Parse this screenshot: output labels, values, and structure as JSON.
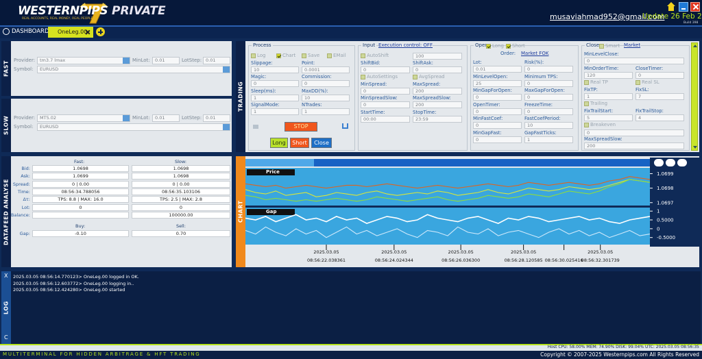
{
  "header": {
    "brand": "WESTERNPIPS",
    "edition": "PRIVATE",
    "tagline": "REAL ACCOUNTS, REAL MONEY, REAL PEOPLE",
    "email": "musaviahmad952@gmail.com",
    "update": "Update 26 Feb 2025",
    "build": "Build 398"
  },
  "tabs": {
    "dashboard": "DASHBOARD",
    "active": "OneLeg.00"
  },
  "fast": {
    "title": "FAST",
    "provider_label": "Provider:",
    "provider": "tm3.7 lmax",
    "minlot_label": "MinLot:",
    "minlot": "0.01",
    "lotstep_label": "LotStep:",
    "lotstep": "0.01",
    "symbol_label": "Symbol:",
    "symbol": "EURUSD"
  },
  "slow": {
    "title": "SLOW",
    "provider_label": "Provider:",
    "provider": "MT5.02",
    "minlot_label": "MinLot:",
    "minlot": "0.01",
    "lotstep_label": "LotStep:",
    "lotstep": "0.01",
    "symbol_label": "Symbol:",
    "symbol": "EURUSD"
  },
  "datafeed": {
    "title": "DATAFEED ANALYSE",
    "col_fast": "Fast:",
    "col_slow": "Slow:",
    "rows": [
      {
        "label": "Bid:",
        "fast": "1.0698",
        "slow": "1.0698"
      },
      {
        "label": "Ask:",
        "fast": "1.0699",
        "slow": "1.0698"
      },
      {
        "label": "Spread:",
        "fast": "0 | 0.00",
        "slow": "0 | 0.00"
      },
      {
        "label": "Time:",
        "fast": "08:56:34.788056",
        "slow": "08:56:35.103106"
      },
      {
        "label": "Δτ:",
        "fast": "TPS: 8.8 | MAX: 16.0",
        "slow": "TPS: 2.5 | MAX: 2.8"
      },
      {
        "label": "Lot:",
        "fast": "0",
        "slow": "0"
      },
      {
        "label": "Balance:",
        "slow": "100000.00"
      }
    ],
    "buy_label": "Buy:",
    "sell_label": "Sell:",
    "gap_label": "Gap:",
    "buy": "-0.10",
    "sell": "0.70"
  },
  "trading": {
    "title": "TRADING",
    "process": {
      "title": "Process",
      "rows": [
        [
          {
            "check": "Log",
            "on": false
          },
          {
            "check": "Chart",
            "on": true
          },
          {
            "check": "Save",
            "on": false
          },
          {
            "check": "EMail",
            "on": false
          }
        ],
        [
          {
            "label": "Slippage:",
            "value": "10"
          },
          {
            "label": "Point:",
            "value": "0.0001"
          }
        ],
        [
          {
            "label": "Magic:",
            "value": "0"
          },
          {
            "label": "Commission:",
            "value": "0"
          }
        ],
        [
          {
            "label": "Sleep(ms):",
            "value": "1"
          },
          {
            "label": "MaxDD(%):",
            "value": "10"
          }
        ],
        [
          {
            "label": "SignalMode:",
            "value": "1"
          },
          {
            "label": "NTrades:",
            "value": "1"
          }
        ]
      ],
      "buttons": {
        "stop": "STOP",
        "long": "Long",
        "short": "Short",
        "close": "Close"
      }
    },
    "input": {
      "title": "Input",
      "link": "Execution control: OFF",
      "rows": [
        [
          {
            "check": "AutoShift",
            "on": false
          },
          {
            "value": "100"
          }
        ],
        [
          {
            "label": "ShiftBid:",
            "value": "0"
          },
          {
            "label": "ShiftAsk:",
            "value": "0"
          }
        ],
        [
          {
            "check": "AutoSettings",
            "on": false
          },
          {
            "check": "AvgSpread",
            "on": false
          }
        ],
        [
          {
            "label": "MinSpread:",
            "value": "0"
          },
          {
            "label": "MaxSpread:",
            "value": "200"
          }
        ],
        [
          {
            "label": "MinSpreadSlow:",
            "value": "0"
          },
          {
            "label": "MaxSpreadSlow:",
            "value": "200"
          }
        ],
        [
          {
            "label": "StartTime:",
            "value": "00:00"
          },
          {
            "label": "StopTime:",
            "value": "23:59"
          }
        ]
      ]
    },
    "open": {
      "title": "Open",
      "checks": [
        {
          "check": "Long",
          "on": true
        },
        {
          "check": "Short",
          "on": true
        }
      ],
      "order_label": "Order:",
      "order": "Market FOK",
      "rows": [
        [
          {
            "label": "Lot:",
            "value": "0.01"
          },
          {
            "label": "Risk(%):",
            "value": "0"
          }
        ],
        [
          {
            "label": "MinLevelOpen:",
            "value": "25"
          },
          {
            "label": "Minimum TPS:",
            "value": "0"
          }
        ],
        [
          {
            "label": "MinGapForOpen:",
            "value": "0"
          },
          {
            "label": "MaxGapForOpen:",
            "value": "0"
          }
        ],
        [
          {
            "label": "OpenTimer:",
            "value": "0"
          },
          {
            "label": "FreezeTime:",
            "value": "0"
          }
        ],
        [
          {
            "label": "MinFastCoef:",
            "value": "0"
          },
          {
            "label": "FastCoefPeriod:",
            "value": "10"
          }
        ],
        [
          {
            "label": "MinGapFast:",
            "value": "0"
          },
          {
            "label": "GapFastTicks:",
            "value": "1"
          }
        ]
      ]
    },
    "close": {
      "title": "Close",
      "checks": [
        {
          "check": "Smart",
          "on": false
        }
      ],
      "link": "Market",
      "rows": [
        [
          {
            "label": "MinLevelClose:",
            "value": "0"
          }
        ],
        [
          {
            "label": "MinOrderTime:",
            "value": "120"
          },
          {
            "label": "CloseTimer:",
            "value": "0"
          }
        ],
        [
          {
            "check": "Real TP",
            "on": false
          },
          {
            "check": "Real SL",
            "on": false
          }
        ],
        [
          {
            "label": "FixTP:",
            "value": "1"
          },
          {
            "label": "FixSL:",
            "value": "7"
          }
        ],
        [
          {
            "check": "Trailing",
            "on": false
          }
        ],
        [
          {
            "label": "FixTrailStart:",
            "value": "5"
          },
          {
            "label": "FixTrailStop:",
            "value": "4"
          }
        ],
        [
          {
            "check": "Breakeven",
            "on": false
          }
        ],
        [
          {
            "value": "0"
          }
        ],
        [
          {
            "label": "MaxSpreadSlow:",
            "value": "200"
          }
        ]
      ]
    }
  },
  "chart_panel": {
    "title": "CHART"
  },
  "chart_data": [
    {
      "type": "line",
      "title": "Price",
      "ylim": [
        1.06968,
        1.06994
      ],
      "yticks": [
        1.0699,
        1.0698,
        1.0697
      ],
      "series": [
        {
          "color": "#e0641e",
          "values": [
            1.06983,
            1.06982,
            1.06981,
            1.06982,
            1.0698,
            1.06981,
            1.06982,
            1.06981,
            1.0698,
            1.06981,
            1.06982,
            1.06982,
            1.06981,
            1.06982,
            1.06983,
            1.06982,
            1.06981,
            1.0698,
            1.06981,
            1.06982,
            1.06981,
            1.0698,
            1.06981,
            1.06982,
            1.06983,
            1.06982,
            1.06981,
            1.06982,
            1.06984,
            1.06983,
            1.06982,
            1.06983,
            1.06984,
            1.06983,
            1.06982,
            1.06983,
            1.06985,
            1.06986,
            1.06988,
            1.06987,
            1.06986
          ]
        },
        {
          "color": "#d9e63a",
          "values": [
            1.06979,
            1.06977,
            1.06976,
            1.06978,
            1.06975,
            1.06976,
            1.06977,
            1.06974,
            1.06975,
            1.06977,
            1.06976,
            1.06975,
            1.06977,
            1.06978,
            1.06976,
            1.06975,
            1.06976,
            1.06977,
            1.06976,
            1.06978,
            1.06977,
            1.06975,
            1.06976,
            1.06977,
            1.06979,
            1.06977,
            1.06976,
            1.06978,
            1.0698,
            1.06979,
            1.06978,
            1.06979,
            1.06981,
            1.0698,
            1.06979,
            1.0698,
            1.06982,
            1.06984,
            1.06986,
            1.06985,
            1.06984
          ]
        },
        {
          "color": "#8fdc3c",
          "values": [
            1.06975,
            1.06974,
            1.06972,
            1.06973,
            1.06972,
            1.06971,
            1.06972,
            1.06971,
            1.06972,
            1.06973,
            1.06972,
            1.06971,
            1.06972,
            1.06974,
            1.06973,
            1.06972,
            1.06971,
            1.06972,
            1.06973,
            1.06974,
            1.06972,
            1.06971,
            1.06972,
            1.06973,
            1.06975,
            1.06974,
            1.06973,
            1.06974,
            1.06976,
            1.06975,
            1.06974,
            1.06976,
            1.06978,
            1.06977,
            1.06976,
            1.06978,
            1.06981,
            1.06983,
            1.06986,
            1.06985,
            1.06984
          ]
        }
      ]
    },
    {
      "type": "line",
      "title": "Gap",
      "ylim": [
        -0.9,
        1.2
      ],
      "yticks": [
        1,
        {
          "value": 0.5,
          "label": "0.5000"
        },
        0,
        {
          "value": -0.5,
          "label": "-0.5000"
        }
      ],
      "xlim": [
        0,
        40
      ],
      "xticks": [
        {
          "value": 8,
          "label": "2025.03.05\n08:56:22.038361"
        },
        {
          "value": 14.7,
          "label": "2025.03.05\n08:56:24.024344"
        },
        {
          "value": 21.3,
          "label": "2025.03.05\n08:56:26.036300"
        },
        {
          "value": 27.5,
          "label": "2025.03.05\n08:56:28.120585"
        },
        {
          "value": 31.5,
          "label": "08:56:30.025416"
        },
        {
          "value": 35.1,
          "label": "2025.03.05\n08:56:32.301739"
        }
      ],
      "series": [
        {
          "color": "#ffffff",
          "values": [
            0.6,
            0.5,
            0.7,
            0.4,
            0.6,
            0.8,
            0.5,
            0.6,
            0.4,
            0.7,
            0.5,
            0.6,
            0.3,
            0.5,
            0.7,
            0.6,
            0.4,
            0.5,
            0.8,
            0.6,
            0.5,
            0.4,
            0.6,
            0.7,
            0.5,
            0.3,
            0.6,
            0.5,
            0.7,
            0.6,
            0.4,
            0.5,
            0.6,
            0.7,
            0.5,
            0.6,
            0.4,
            0.3,
            0.5,
            0.6,
            0.7
          ]
        },
        {
          "color": "#cfe9fb",
          "values": [
            -0.1,
            -0.3,
            0.1,
            -0.2,
            -0.4,
            0.0,
            -0.3,
            -0.1,
            -0.5,
            -0.2,
            0.1,
            -0.3,
            -0.1,
            -0.4,
            -0.2,
            0.0,
            -0.3,
            -0.5,
            -0.1,
            -0.2,
            -0.4,
            0.1,
            -0.2,
            -0.3,
            0.0,
            -0.4,
            -0.2,
            -0.1,
            -0.3,
            -0.5,
            -0.2,
            0.0,
            -0.3,
            -0.1,
            -0.4,
            -0.2,
            -0.5,
            -0.3,
            -0.1,
            -0.4,
            -0.3
          ]
        }
      ]
    }
  ],
  "log": {
    "title": "LOG",
    "clear_top": "X",
    "clear_bottom": "C",
    "lines": [
      "2025.03.05 08:56:14.770123> OneLeg.00 logged in OK.",
      "2025.03.05 08:56:12.603772> OneLeg.00 logging in..",
      "2025.03.05 08:56:12.424280> OneLeg.00 started"
    ]
  },
  "footer": {
    "status": "Host CPU: 58.00% MEM: 74.90% DISK: 99.04% UTC: 2025.03.05 08:56:35",
    "slogan": "MULTITERMINAL FOR HIDDEN ARBITRAGE & HFT TRADING",
    "copyright": "Copyright © 2007-2025 Westernpips.com All Rights Reserved"
  }
}
